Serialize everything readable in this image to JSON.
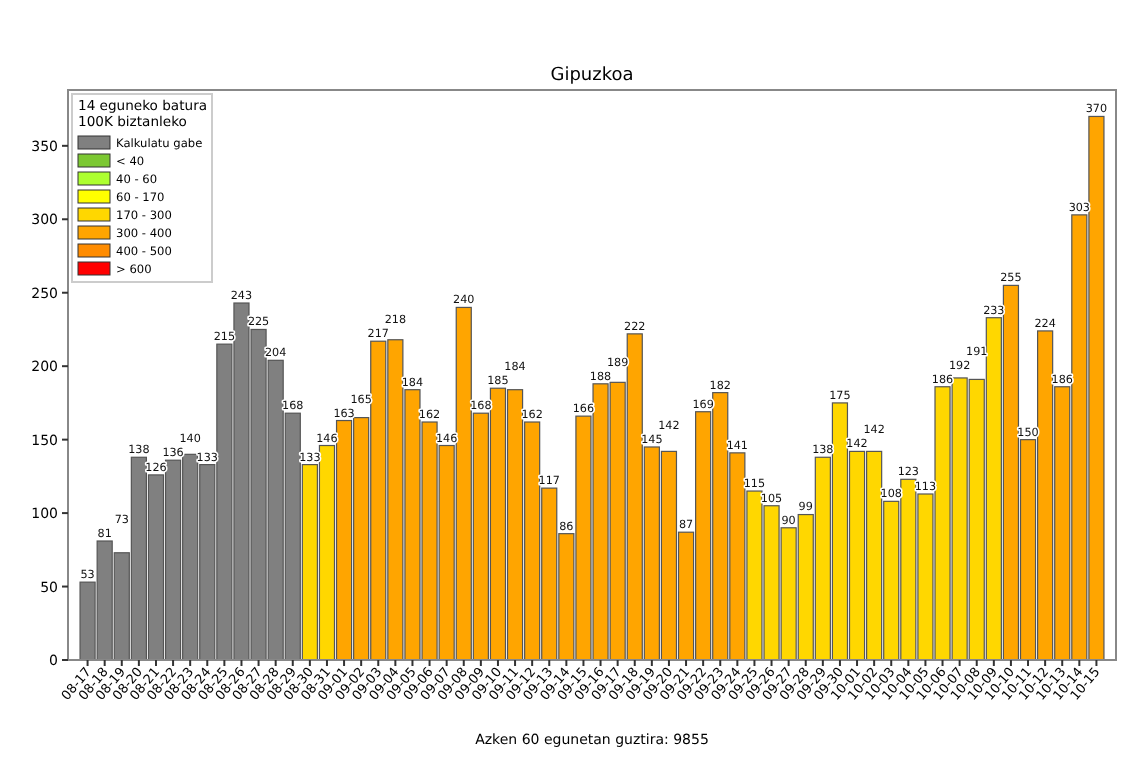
{
  "chart_data": {
    "type": "bar",
    "title": "Gipuzkoa",
    "xlabel": "Azken 60 egunetan guztira: 9855",
    "legend_title": "14 eguneko batura\n100K biztanleko",
    "categories": [
      "08-17",
      "08-18",
      "08-19",
      "08-20",
      "08-21",
      "08-22",
      "08-23",
      "08-24",
      "08-25",
      "08-26",
      "08-27",
      "08-28",
      "08-29",
      "08-30",
      "08-31",
      "09-01",
      "09-02",
      "09-03",
      "09-04",
      "09-05",
      "09-06",
      "09-07",
      "09-08",
      "09-09",
      "09-10",
      "09-11",
      "09-12",
      "09-13",
      "09-14",
      "09-15",
      "09-16",
      "09-17",
      "09-18",
      "09-19",
      "09-20",
      "09-21",
      "09-22",
      "09-23",
      "09-24",
      "09-25",
      "09-26",
      "09-27",
      "09-28",
      "09-29",
      "09-30",
      "10-01",
      "10-02",
      "10-03",
      "10-04",
      "10-05",
      "10-06",
      "10-07",
      "10-08",
      "10-09",
      "10-10",
      "10-11",
      "10-12",
      "10-13",
      "10-14",
      "10-15"
    ],
    "series": [
      {
        "name": "Kalkulatu gabe",
        "color": "#808080",
        "values": [
          53,
          81,
          73,
          138,
          126,
          136,
          140,
          133,
          215,
          243,
          225,
          204,
          168,
          null,
          null,
          null,
          null,
          null,
          null,
          null,
          null,
          null,
          null,
          null,
          null,
          null,
          null,
          null,
          null,
          null,
          null,
          null,
          null,
          null,
          null,
          null,
          null,
          null,
          null,
          null,
          null,
          null,
          null,
          null,
          null,
          null,
          null,
          null,
          null,
          null,
          null,
          null,
          null,
          null,
          null,
          null,
          null,
          null,
          null,
          null
        ]
      },
      {
        "name": "< 40",
        "color": "#7cc832",
        "values": [
          null,
          null,
          null,
          null,
          null,
          null,
          null,
          null,
          null,
          null,
          null,
          null,
          null,
          null,
          null,
          null,
          null,
          null,
          null,
          null,
          null,
          null,
          null,
          null,
          null,
          null,
          null,
          null,
          null,
          null,
          null,
          null,
          null,
          null,
          null,
          null,
          null,
          null,
          null,
          null,
          null,
          null,
          null,
          null,
          null,
          null,
          null,
          null,
          null,
          null,
          null,
          null,
          null,
          null,
          null,
          null,
          null,
          null,
          null,
          null
        ]
      },
      {
        "name": "40 - 60",
        "color": "#adff2f",
        "values": [
          null,
          null,
          null,
          null,
          null,
          null,
          null,
          null,
          null,
          null,
          null,
          null,
          null,
          null,
          null,
          null,
          null,
          null,
          null,
          null,
          null,
          null,
          null,
          null,
          null,
          null,
          null,
          null,
          null,
          null,
          null,
          null,
          null,
          null,
          null,
          null,
          null,
          null,
          null,
          null,
          null,
          null,
          null,
          null,
          null,
          null,
          null,
          null,
          null,
          null,
          null,
          null,
          null,
          null,
          null,
          null,
          null,
          null,
          null,
          null
        ]
      },
      {
        "name": "60 - 170",
        "color": "#ffff00",
        "values": [
          null,
          null,
          null,
          null,
          null,
          null,
          null,
          null,
          null,
          null,
          null,
          null,
          null,
          null,
          null,
          null,
          null,
          null,
          null,
          null,
          null,
          null,
          null,
          null,
          null,
          null,
          null,
          null,
          null,
          null,
          null,
          null,
          null,
          null,
          null,
          null,
          null,
          null,
          null,
          null,
          null,
          null,
          null,
          null,
          null,
          null,
          null,
          null,
          null,
          null,
          null,
          null,
          null,
          null,
          null,
          null,
          null,
          null,
          null,
          null
        ]
      },
      {
        "name": "170 - 300",
        "color": "#ffd700",
        "values": [
          null,
          null,
          null,
          null,
          null,
          null,
          null,
          null,
          null,
          null,
          null,
          null,
          null,
          133,
          146,
          null,
          null,
          null,
          null,
          null,
          null,
          null,
          null,
          null,
          null,
          null,
          null,
          null,
          null,
          null,
          null,
          null,
          null,
          null,
          null,
          null,
          null,
          null,
          null,
          115,
          105,
          90,
          99,
          138,
          175,
          142,
          142,
          108,
          123,
          113,
          186,
          192,
          191,
          233,
          null,
          null,
          null,
          null,
          null,
          null
        ]
      },
      {
        "name": "300 - 400",
        "color": "#ffa500",
        "values": [
          null,
          null,
          null,
          null,
          null,
          null,
          null,
          null,
          null,
          null,
          null,
          null,
          null,
          null,
          null,
          163,
          165,
          217,
          218,
          184,
          162,
          146,
          240,
          168,
          185,
          184,
          162,
          117,
          86,
          166,
          188,
          189,
          222,
          145,
          142,
          87,
          169,
          182,
          141,
          null,
          null,
          null,
          null,
          null,
          null,
          null,
          null,
          null,
          null,
          null,
          null,
          null,
          null,
          null,
          255,
          150,
          224,
          186,
          303,
          370
        ]
      },
      {
        "name": "400 - 500",
        "color": "#ff8c00",
        "values": [
          null,
          null,
          null,
          null,
          null,
          null,
          null,
          null,
          null,
          null,
          null,
          null,
          null,
          null,
          null,
          null,
          null,
          null,
          null,
          null,
          null,
          null,
          null,
          null,
          null,
          null,
          null,
          null,
          null,
          null,
          null,
          null,
          null,
          null,
          null,
          null,
          null,
          null,
          null,
          null,
          null,
          null,
          null,
          null,
          null,
          null,
          null,
          null,
          null,
          null,
          null,
          null,
          null,
          null,
          null,
          null,
          null,
          null,
          null,
          null
        ]
      },
      {
        "name": "> 600",
        "color": "#ff0000",
        "values": [
          null,
          null,
          null,
          null,
          null,
          null,
          null,
          null,
          null,
          null,
          null,
          null,
          null,
          null,
          null,
          null,
          null,
          null,
          null,
          null,
          null,
          null,
          null,
          null,
          null,
          null,
          null,
          null,
          null,
          null,
          null,
          null,
          null,
          null,
          null,
          null,
          null,
          null,
          null,
          null,
          null,
          null,
          null,
          null,
          null,
          null,
          null,
          null,
          null,
          null,
          null,
          null,
          null,
          null,
          null,
          null,
          null,
          null,
          null,
          null
        ]
      }
    ],
    "ylim": [
      0,
      388
    ],
    "yticks": [
      0,
      50,
      100,
      150,
      200,
      250,
      300,
      350
    ],
    "data_labels": true,
    "legend": "top left"
  }
}
